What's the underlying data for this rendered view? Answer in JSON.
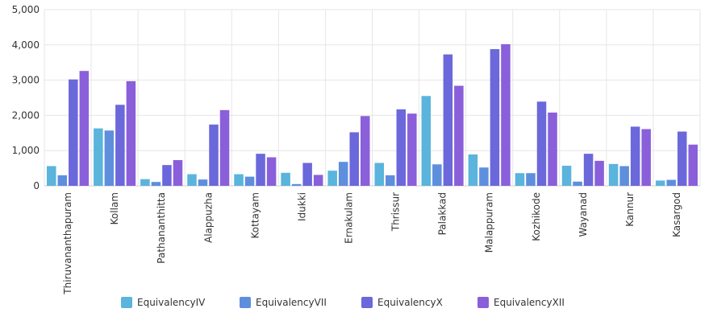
{
  "chart_data": {
    "type": "bar",
    "categories": [
      "Thiruvananthapuram",
      "Kollam",
      "Pathananthitta",
      "Alappuzha",
      "Kottayam",
      "Idukki",
      "Ernakulam",
      "Thrissur",
      "Palakkad",
      "Malappuram",
      "Kozhikode",
      "Wayanad",
      "Kannur",
      "Kasargod"
    ],
    "series": [
      {
        "name": "EquivalencyIV",
        "color": "#5ab4dc",
        "values": [
          560,
          1630,
          190,
          330,
          330,
          370,
          430,
          650,
          2550,
          890,
          360,
          570,
          620,
          150
        ]
      },
      {
        "name": "EquivalencyVII",
        "color": "#5e8fdd",
        "values": [
          300,
          1570,
          110,
          180,
          260,
          50,
          680,
          300,
          610,
          520,
          360,
          120,
          560,
          170
        ]
      },
      {
        "name": "EquivalencyX",
        "color": "#6b68db",
        "values": [
          3020,
          2300,
          590,
          1740,
          910,
          650,
          1520,
          2170,
          3730,
          3880,
          2390,
          910,
          1680,
          1540
        ]
      },
      {
        "name": "EquivalencyXII",
        "color": "#8a5fda",
        "values": [
          3260,
          2970,
          730,
          2150,
          810,
          310,
          1980,
          2050,
          2840,
          4020,
          2080,
          710,
          1610,
          1170
        ]
      }
    ],
    "y_ticks": [
      "0",
      "1,000",
      "2,000",
      "3,000",
      "4,000",
      "5,000"
    ],
    "ylim": [
      0,
      5000
    ],
    "grid": true,
    "legend_position": "bottom"
  }
}
